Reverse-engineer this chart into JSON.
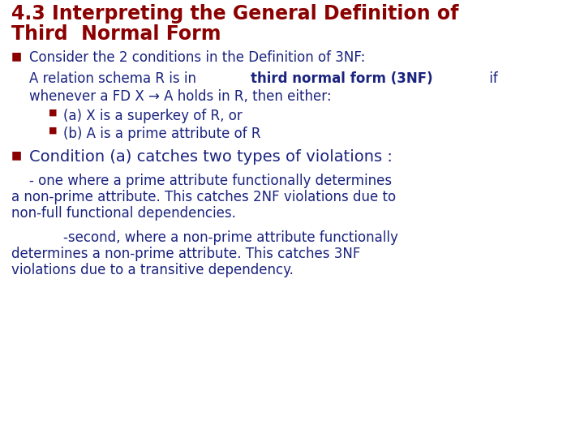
{
  "title_line1": "4.3 Interpreting the General Definition of",
  "title_line2": "Third  Normal Form",
  "title_color": "#8B0000",
  "title_fontsize": 17,
  "body_fontsize": 12,
  "bg_color": "#FFFFFF",
  "bullet_color": "#8B0000",
  "text_color": "#1a237e",
  "bullet1_text": "Consider the 2 conditions in the Definition of 3NF:",
  "bullet1_sub_normal": "A relation schema R is in ",
  "bullet1_sub_bold": "third normal form (3NF)",
  "bullet1_sub_end": " if",
  "bullet1_sub2": "whenever a FD X → A holds in R, then either:",
  "sub_bullet_a": "(a) X is a superkey of R, or",
  "sub_bullet_b": "(b) A is a prime attribute of R",
  "bullet2_text": "Condition (a) catches two types of violations :",
  "para1_line1": "- one where a prime attribute functionally determines",
  "para1_line2": "a non-prime attribute. This catches 2NF violations due to",
  "para1_line3": "non-full functional dependencies.",
  "para2_line1": "        -second, where a non-prime attribute functionally",
  "para2_line2": "determines a non-prime attribute. This catches 3NF",
  "para2_line3": "violations due to a transitive dependency."
}
